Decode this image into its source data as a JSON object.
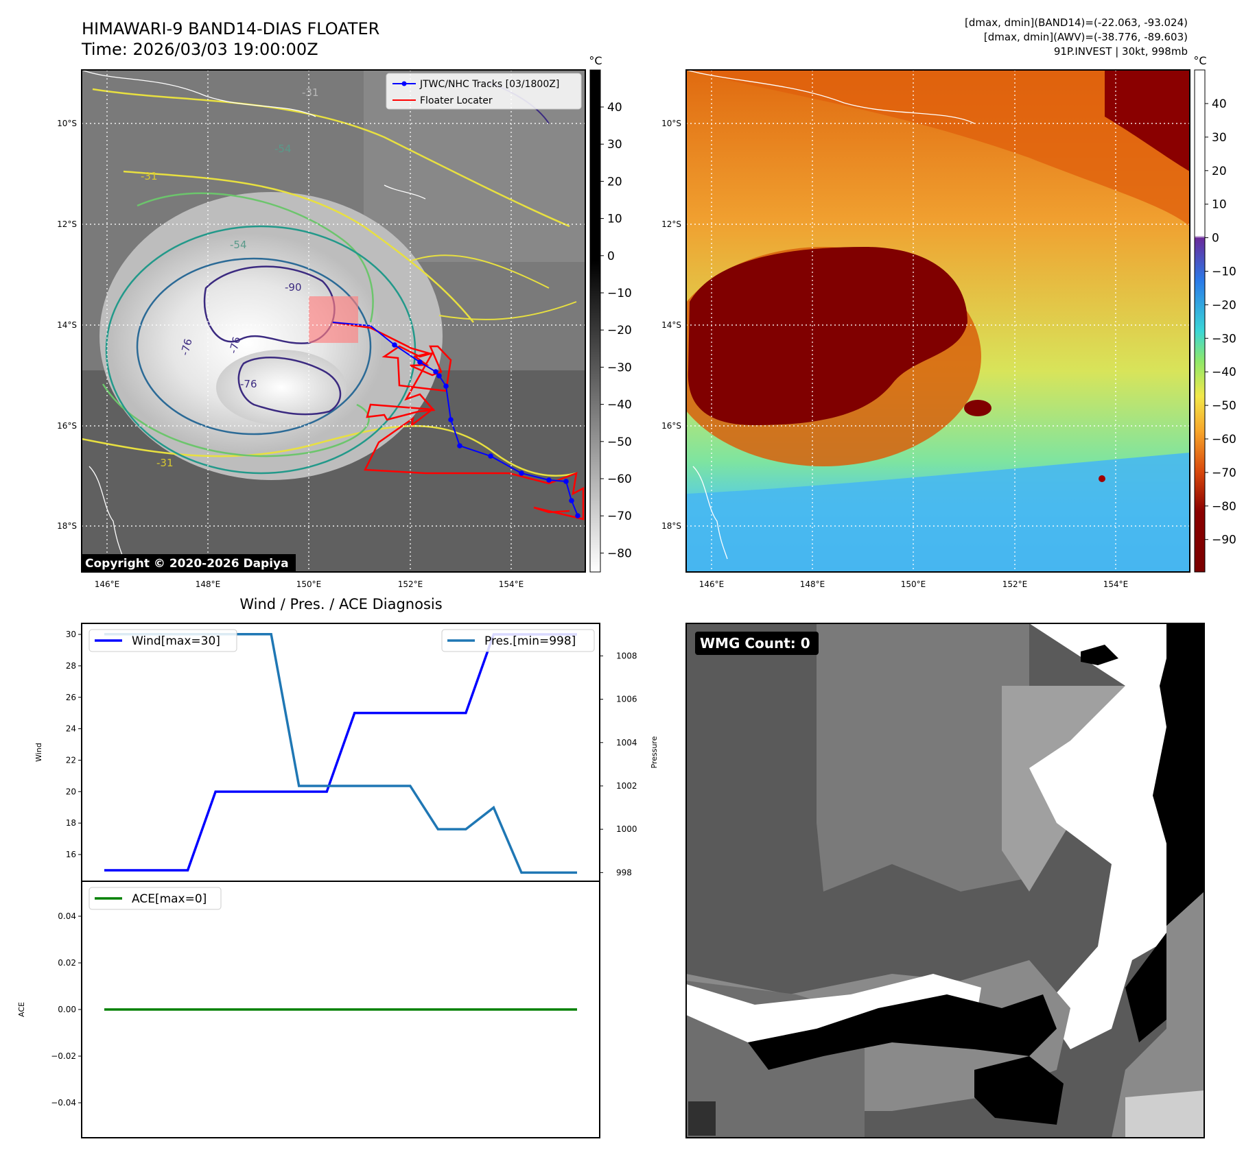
{
  "header": {
    "title_line1": "HIMAWARI-9 BAND14-DIAS FLOATER",
    "title_line2": "Time: 2026/03/03 19:00:00Z",
    "right_line1": "[dmax, dmin](BAND14)=(-22.063, -93.024)",
    "right_line2": "[dmax, dmin](AWV)=(-38.776, -89.603)",
    "right_line3": "91P.INVEST | 30kt, 998mb"
  },
  "map": {
    "lon_ticks": [
      "146°E",
      "148°E",
      "150°E",
      "152°E",
      "154°E"
    ],
    "lat_ticks": [
      "10°S",
      "12°S",
      "14°S",
      "16°S",
      "18°S"
    ],
    "contour_labels": [
      "-31",
      "-31",
      "-54",
      "-54",
      "-90",
      "-76",
      "-76",
      "-76",
      "-31"
    ],
    "legend": {
      "tracks": "JTWC/NHC Tracks [03/1800Z]",
      "locater": "Floater Locater"
    },
    "copyright": "Copyright © 2020-2026 Dapiya",
    "colors": {
      "track": "#0000ff",
      "locater": "#ff0000"
    }
  },
  "colorbar_band14": {
    "unit": "°C",
    "ticks": [
      "40",
      "30",
      "20",
      "10",
      "0",
      "−10",
      "−20",
      "−30",
      "−40",
      "−50",
      "−60",
      "−70",
      "−80"
    ]
  },
  "colorbar_awv": {
    "unit": "°C",
    "ticks": [
      "40",
      "30",
      "20",
      "10",
      "0",
      "−10",
      "−20",
      "−30",
      "−40",
      "−50",
      "−60",
      "−70",
      "−80",
      "−90"
    ]
  },
  "chart_data": [
    {
      "type": "line",
      "title": "Wind / Pres. / ACE Diagnosis",
      "ylabel": "Wind",
      "y2label": "Pressure",
      "x": [
        0,
        1,
        2,
        3,
        4,
        5,
        6,
        7,
        8,
        9,
        10,
        11,
        12,
        13,
        14,
        15,
        16,
        17
      ],
      "series": [
        {
          "name": "Wind[max=30]",
          "axis": "left",
          "color": "#0000ff",
          "values": [
            15,
            15,
            15,
            15,
            20,
            20,
            20,
            20,
            20,
            25,
            25,
            25,
            25,
            25,
            30,
            30,
            30,
            30
          ]
        },
        {
          "name": "Pres.[min=998]",
          "axis": "right",
          "color": "#1f77b4",
          "values": [
            1009,
            1009,
            1009,
            1009,
            1009,
            1009,
            1009,
            1002,
            1002,
            1002,
            1002,
            1002,
            1000,
            1000,
            1001,
            998,
            998,
            998
          ]
        }
      ],
      "yticks": [
        "16",
        "18",
        "20",
        "22",
        "24",
        "26",
        "28",
        "30"
      ],
      "y2ticks": [
        "998",
        "1000",
        "1002",
        "1004",
        "1006",
        "1008"
      ],
      "ylim": [
        14.3,
        30.7
      ],
      "y2lim": [
        997.6,
        1009.5
      ]
    },
    {
      "type": "line",
      "ylabel": "ACE",
      "x": [
        0,
        1,
        2,
        3,
        4,
        5,
        6,
        7,
        8,
        9,
        10,
        11,
        12,
        13,
        14,
        15,
        16,
        17
      ],
      "series": [
        {
          "name": "ACE[max=0]",
          "color": "#008000",
          "values": [
            0,
            0,
            0,
            0,
            0,
            0,
            0,
            0,
            0,
            0,
            0,
            0,
            0,
            0,
            0,
            0,
            0,
            0
          ]
        }
      ],
      "yticks": [
        "0.04",
        "0.02",
        "0.00",
        "−0.02",
        "−0.04"
      ],
      "ylim": [
        -0.055,
        0.055
      ]
    }
  ],
  "wmg": {
    "label": "WMG Count: 0"
  }
}
